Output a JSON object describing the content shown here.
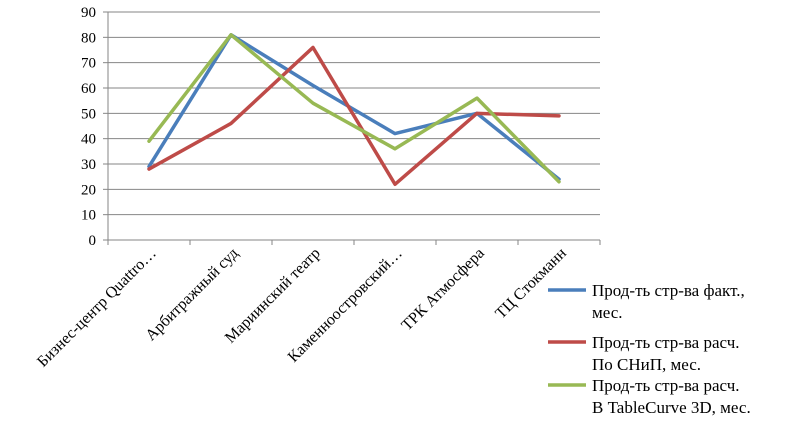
{
  "chart_data": {
    "type": "line",
    "categories": [
      "Бизнес-центр Quattro…",
      "Арбитражный суд",
      "Мариинский театр",
      "Каменноостровский…",
      "ТРК Атмосфера",
      "ТЦ Стокманн"
    ],
    "series": [
      {
        "name": "Прод-ть стр-ва факт., мес.",
        "legend_lines": [
          "Прод-ть стр-ва факт.,",
          "мес."
        ],
        "color": "#4a7ebb",
        "values": [
          29,
          81,
          61,
          42,
          50,
          24
        ]
      },
      {
        "name": "Прод-ть стр-ва расч. По СНиП, мес.",
        "legend_lines": [
          "Прод-ть стр-ва расч.",
          "По СНиП, мес."
        ],
        "color": "#be4b48",
        "values": [
          28,
          46,
          76,
          22,
          50,
          49
        ]
      },
      {
        "name": "Прод-ть стр-ва расч. В TableCurve 3D, мес.",
        "legend_lines": [
          "Прод-ть стр-ва расч.",
          "В TableCurve 3D, мес."
        ],
        "color": "#98b954",
        "values": [
          39,
          81,
          54,
          36,
          56,
          23
        ]
      }
    ],
    "ylim": [
      0,
      90
    ],
    "yticks": [
      0,
      10,
      20,
      30,
      40,
      50,
      60,
      70,
      80,
      90
    ],
    "grid": true,
    "legend_position": "right",
    "title": "",
    "xlabel": "",
    "ylabel": ""
  }
}
